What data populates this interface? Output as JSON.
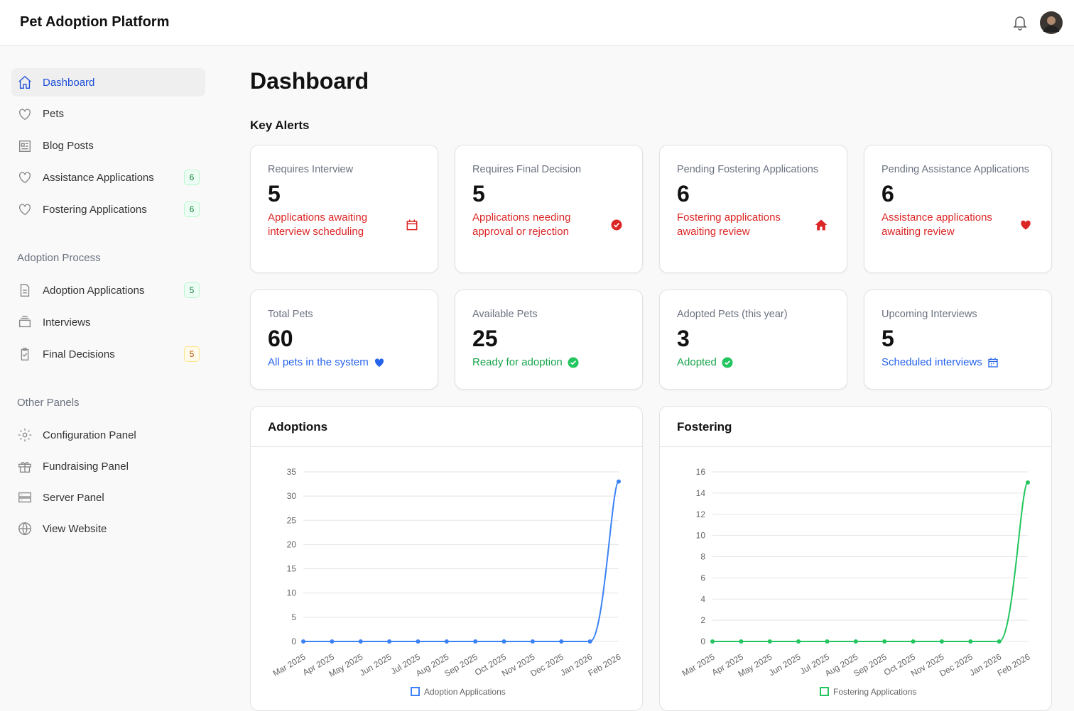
{
  "header": {
    "title": "Pet Adoption Platform"
  },
  "sidebar": {
    "items": [
      {
        "label": "Dashboard"
      },
      {
        "label": "Pets"
      },
      {
        "label": "Blog Posts"
      },
      {
        "label": "Assistance Applications",
        "badge": 6
      },
      {
        "label": "Fostering Applications",
        "badge": 6
      }
    ],
    "groups": [
      {
        "title": "Adoption Process",
        "items": [
          {
            "label": "Adoption Applications",
            "badge": 5
          },
          {
            "label": "Interviews"
          },
          {
            "label": "Final Decisions",
            "badge": 5
          }
        ]
      },
      {
        "title": "Other Panels",
        "items": [
          {
            "label": "Configuration Panel"
          },
          {
            "label": "Fundraising Panel"
          },
          {
            "label": "Server Panel"
          },
          {
            "label": "View Website"
          }
        ]
      }
    ]
  },
  "page": {
    "title": "Dashboard",
    "section": "Key Alerts"
  },
  "alerts": [
    {
      "label": "Requires Interview",
      "value": 5,
      "description": "Applications awaiting interview scheduling"
    },
    {
      "label": "Requires Final Decision",
      "value": 5,
      "description": "Applications needing approval or rejection"
    },
    {
      "label": "Pending Fostering Applications",
      "value": 6,
      "description": "Fostering applications awaiting review"
    },
    {
      "label": "Pending Assistance Applications",
      "value": 6,
      "description": "Assistance applications awaiting review"
    }
  ],
  "stats": [
    {
      "label": "Total Pets",
      "value": 60,
      "description": "All pets in the system"
    },
    {
      "label": "Available Pets",
      "value": 25,
      "description": "Ready for adoption"
    },
    {
      "label": "Adopted Pets (this year)",
      "value": 3,
      "description": "Adopted"
    },
    {
      "label": "Upcoming Interviews",
      "value": 5,
      "description": "Scheduled interviews"
    }
  ],
  "chart_data": [
    {
      "type": "line",
      "title": "Adoptions",
      "categories": [
        "Mar 2025",
        "Apr 2025",
        "May 2025",
        "Jun 2025",
        "Jul 2025",
        "Aug 2025",
        "Sep 2025",
        "Oct 2025",
        "Nov 2025",
        "Dec 2025",
        "Jan 2026",
        "Feb 2026"
      ],
      "series": [
        {
          "name": "Adoption Applications",
          "color": "#3b82f6",
          "values": [
            0,
            0,
            0,
            0,
            0,
            0,
            0,
            0,
            0,
            0,
            0,
            33
          ]
        }
      ],
      "ylim": [
        0,
        35
      ],
      "yticks": [
        0,
        5,
        10,
        15,
        20,
        25,
        30,
        35
      ],
      "grid": true
    },
    {
      "type": "line",
      "title": "Fostering",
      "categories": [
        "Mar 2025",
        "Apr 2025",
        "May 2025",
        "Jun 2025",
        "Jul 2025",
        "Aug 2025",
        "Sep 2025",
        "Oct 2025",
        "Nov 2025",
        "Dec 2025",
        "Jan 2026",
        "Feb 2026"
      ],
      "series": [
        {
          "name": "Fostering Applications",
          "color": "#22c55e",
          "values": [
            0,
            0,
            0,
            0,
            0,
            0,
            0,
            0,
            0,
            0,
            0,
            15
          ]
        }
      ],
      "ylim": [
        0,
        16
      ],
      "yticks": [
        0,
        2,
        4,
        6,
        8,
        10,
        12,
        14,
        16
      ],
      "grid": true
    }
  ]
}
